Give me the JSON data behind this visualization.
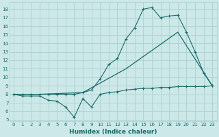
{
  "xlabel": "Humidex (Indice chaleur)",
  "xlim": [
    -0.5,
    23.5
  ],
  "ylim": [
    4.8,
    18.8
  ],
  "xticks": [
    0,
    1,
    2,
    3,
    4,
    5,
    6,
    7,
    8,
    9,
    10,
    11,
    12,
    13,
    14,
    15,
    16,
    17,
    18,
    19,
    20,
    21,
    22,
    23
  ],
  "yticks": [
    5,
    6,
    7,
    8,
    9,
    10,
    11,
    12,
    13,
    14,
    15,
    16,
    17,
    18
  ],
  "bg_color": "#cde8e8",
  "grid_color": "#aacfcf",
  "line_color": "#1a6b6b",
  "line1_x": [
    0,
    1,
    2,
    3,
    4,
    5,
    6,
    7,
    8,
    9,
    10,
    11,
    12,
    13,
    14,
    15,
    16,
    17,
    18,
    19,
    20,
    21,
    22,
    23
  ],
  "line1_y": [
    8.0,
    7.8,
    7.8,
    7.8,
    7.3,
    7.2,
    6.5,
    5.3,
    7.5,
    6.5,
    8.0,
    8.2,
    8.3,
    8.5,
    8.6,
    8.7,
    8.7,
    8.8,
    8.8,
    8.9,
    8.9,
    8.9,
    8.9,
    9.0
  ],
  "line2_x": [
    0,
    1,
    2,
    3,
    4,
    5,
    6,
    7,
    8,
    9,
    10,
    11,
    12,
    13,
    14,
    15,
    16,
    17,
    18,
    19,
    20,
    21,
    22,
    23
  ],
  "line2_y": [
    8.0,
    8.0,
    8.0,
    8.0,
    8.0,
    8.0,
    8.0,
    8.0,
    8.2,
    8.5,
    9.8,
    11.5,
    12.2,
    14.5,
    15.8,
    18.0,
    18.2,
    17.0,
    17.2,
    17.3,
    15.3,
    13.0,
    10.5,
    9.0
  ],
  "line3_x": [
    0,
    3,
    8,
    13,
    19,
    23
  ],
  "line3_y": [
    8.0,
    8.0,
    8.2,
    11.0,
    15.3,
    9.0
  ]
}
